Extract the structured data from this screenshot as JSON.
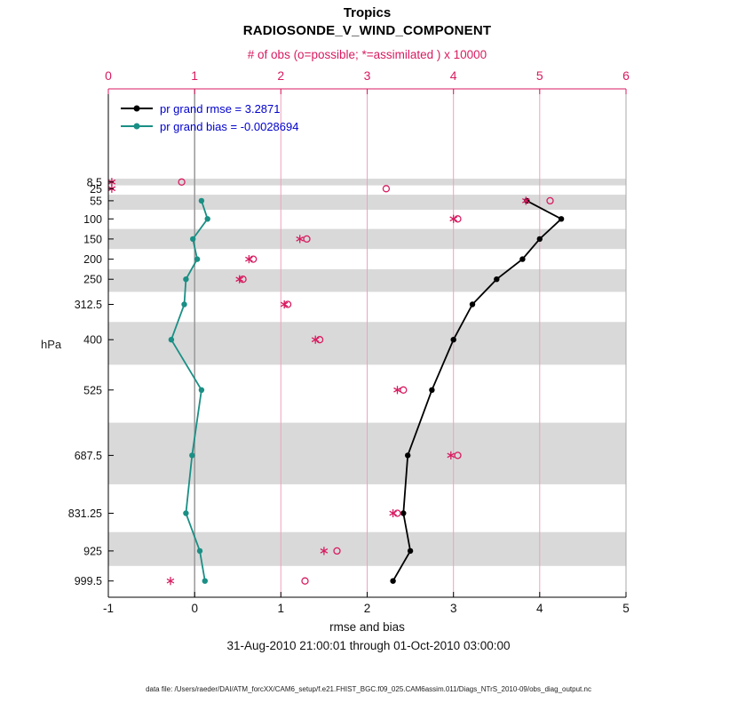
{
  "header": {
    "region": "Tropics",
    "title": "RADIOSONDE_V_WIND_COMPONENT"
  },
  "top_axis_label": "# of obs (o=possible; *=assimilated ) x 10000",
  "ylabel": "hPa",
  "legend": [
    {
      "label": "pr grand rmse = 3.2871",
      "series": "rmse"
    },
    {
      "label": "pr grand bias = -0.0028694",
      "series": "bias"
    }
  ],
  "footer": {
    "xlabel": "rmse and bias",
    "date_range": "31-Aug-2010 21:00:01 through 01-Oct-2010 03:00:00",
    "datafile": "data file: /Users/raeder/DAI/ATM_forcXX/CAM6_setup/f.e21.FHIST_BGC.f09_025.CAM6assim.011/Diags_NTrS_2010-09/obs_diag_output.nc"
  },
  "colors": {
    "rmse": "#000000",
    "bias": "#1a8f85",
    "obs": "#d81b60",
    "legend_text": "#0000cc",
    "grid": "#eda2c0",
    "band": "#d9d9d9",
    "zero_line": "#999999",
    "axis_text": "#111111"
  },
  "chart_data": {
    "type": "line",
    "title": "Tropics",
    "subtitle": "RADIOSONDE_V_WIND_COMPONENT",
    "xlabel": "rmse and bias",
    "ylabel": "hPa",
    "top_axis_label": "# of obs (o=possible; *=assimilated ) x 10000",
    "legend_position": "top-left-inside",
    "grid": "vertical-only",
    "axes": {
      "bottom": {
        "range": [
          -1,
          5
        ],
        "ticks": [
          -1,
          0,
          1,
          2,
          3,
          4,
          5
        ],
        "grid": [
          0,
          1,
          2,
          3,
          4,
          5
        ]
      },
      "top": {
        "range": [
          0,
          6
        ],
        "ticks": [
          0,
          1,
          2,
          3,
          4,
          5,
          6
        ]
      },
      "pressure": {
        "range": [
          -223,
          1040
        ],
        "levels": [
          8.5,
          25,
          55,
          100,
          150,
          200,
          250,
          312.5,
          400,
          525,
          687.5,
          831.25,
          925,
          999.5
        ]
      }
    },
    "zero_line_x": 0,
    "bands_hpa": [
      [
        0.25,
        16.75
      ],
      [
        40,
        77.5
      ],
      [
        125,
        175
      ],
      [
        225,
        281.25
      ],
      [
        356.25,
        462.5
      ],
      [
        606.25,
        759.375
      ],
      [
        878.125,
        962.25
      ]
    ],
    "series": [
      {
        "name": "pr grand rmse",
        "grand_value": 3.2871,
        "axis": "bottom",
        "color_key": "rmse",
        "marker": "filled-circle",
        "points": [
          [
            55,
            3.85
          ],
          [
            100,
            4.25
          ],
          [
            150,
            4.0
          ],
          [
            200,
            3.8
          ],
          [
            250,
            3.5
          ],
          [
            312.5,
            3.22
          ],
          [
            400,
            3.0
          ],
          [
            525,
            2.75
          ],
          [
            687.5,
            2.47
          ],
          [
            831.25,
            2.42
          ],
          [
            925,
            2.5
          ],
          [
            999.5,
            2.3
          ]
        ]
      },
      {
        "name": "pr grand bias",
        "grand_value": -0.0028694,
        "axis": "bottom",
        "color_key": "bias",
        "marker": "filled-circle",
        "points": [
          [
            55,
            0.08
          ],
          [
            100,
            0.15
          ],
          [
            150,
            -0.02
          ],
          [
            200,
            0.03
          ],
          [
            250,
            -0.1
          ],
          [
            312.5,
            -0.12
          ],
          [
            400,
            -0.27
          ],
          [
            525,
            0.08
          ],
          [
            687.5,
            -0.03
          ],
          [
            831.25,
            -0.1
          ],
          [
            925,
            0.06
          ],
          [
            999.5,
            0.12
          ]
        ]
      }
    ],
    "obs_counts_x10000": [
      {
        "level": 8.5,
        "possible": 0.85,
        "assimilated": 0.04
      },
      {
        "level": 25,
        "possible": 3.22,
        "assimilated": 0.04
      },
      {
        "level": 55,
        "possible": 5.12,
        "assimilated": 4.84
      },
      {
        "level": 100,
        "possible": 4.05,
        "assimilated": 4.0
      },
      {
        "level": 150,
        "possible": 2.3,
        "assimilated": 2.22
      },
      {
        "level": 200,
        "possible": 1.68,
        "assimilated": 1.63
      },
      {
        "level": 250,
        "possible": 1.56,
        "assimilated": 1.52
      },
      {
        "level": 312.5,
        "possible": 2.08,
        "assimilated": 2.04
      },
      {
        "level": 400,
        "possible": 2.45,
        "assimilated": 2.4
      },
      {
        "level": 525,
        "possible": 3.42,
        "assimilated": 3.35
      },
      {
        "level": 687.5,
        "possible": 4.05,
        "assimilated": 3.97
      },
      {
        "level": 831.25,
        "possible": 3.35,
        "assimilated": 3.3
      },
      {
        "level": 925,
        "possible": 2.65,
        "assimilated": 2.5
      },
      {
        "level": 999.5,
        "possible": 2.28,
        "assimilated": 0.72
      }
    ]
  }
}
